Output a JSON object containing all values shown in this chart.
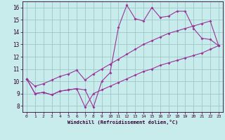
{
  "xlabel": "Windchill (Refroidissement éolien,°C)",
  "bg_color": "#c8ecec",
  "grid_color": "#a0c8c8",
  "line_color": "#993399",
  "x": [
    0,
    1,
    2,
    3,
    4,
    5,
    6,
    7,
    8,
    9,
    10,
    11,
    12,
    13,
    14,
    15,
    16,
    17,
    18,
    19,
    20,
    21,
    22,
    23
  ],
  "y_main": [
    10.2,
    9.0,
    9.1,
    8.9,
    9.2,
    9.3,
    9.4,
    9.3,
    7.9,
    10.0,
    10.7,
    14.4,
    16.2,
    15.1,
    14.9,
    16.0,
    15.2,
    15.3,
    15.7,
    15.7,
    14.3,
    13.5,
    13.4,
    12.9
  ],
  "y_upper": [
    10.2,
    9.6,
    9.8,
    10.1,
    10.4,
    10.6,
    10.9,
    10.1,
    10.6,
    11.0,
    11.4,
    11.8,
    12.2,
    12.6,
    13.0,
    13.3,
    13.6,
    13.9,
    14.1,
    14.3,
    14.5,
    14.7,
    14.9,
    12.9
  ],
  "y_lower": [
    10.2,
    9.0,
    9.1,
    8.9,
    9.2,
    9.3,
    9.4,
    7.9,
    9.0,
    9.3,
    9.6,
    9.9,
    10.2,
    10.5,
    10.8,
    11.0,
    11.3,
    11.5,
    11.7,
    11.9,
    12.1,
    12.3,
    12.6,
    12.9
  ],
  "xlim": [
    -0.5,
    23.5
  ],
  "ylim": [
    7.5,
    16.5
  ],
  "yticks": [
    8,
    9,
    10,
    11,
    12,
    13,
    14,
    15,
    16
  ],
  "xticks": [
    0,
    1,
    2,
    3,
    4,
    5,
    6,
    7,
    8,
    9,
    10,
    11,
    12,
    13,
    14,
    15,
    16,
    17,
    18,
    19,
    20,
    21,
    22,
    23
  ]
}
